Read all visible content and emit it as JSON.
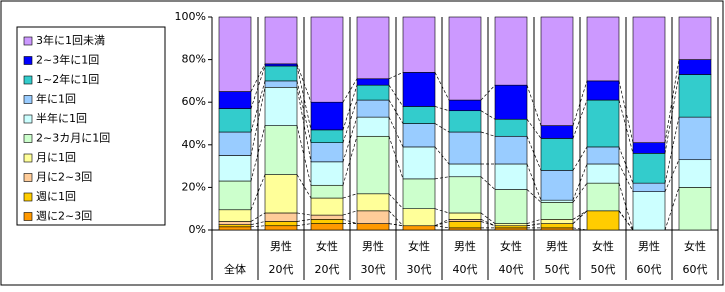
{
  "chart_data": {
    "type": "stacked_bar_percent",
    "categories": [
      [
        "全体"
      ],
      [
        "男性",
        "20代"
      ],
      [
        "女性",
        "20代"
      ],
      [
        "男性",
        "30代"
      ],
      [
        "女性",
        "30代"
      ],
      [
        "男性",
        "40代"
      ],
      [
        "女性",
        "40代"
      ],
      [
        "男性",
        "50代"
      ],
      [
        "女性",
        "50代"
      ],
      [
        "男性",
        "60代"
      ],
      [
        "女性",
        "60代"
      ]
    ],
    "series": [
      {
        "name": "週に2~3回",
        "color": "#ff9900",
        "values": [
          1.5,
          2,
          3,
          3,
          2,
          1,
          1,
          1,
          0,
          0,
          0
        ]
      },
      {
        "name": "週に1回",
        "color": "#ffcc00",
        "values": [
          1,
          2,
          2,
          0,
          0,
          3,
          1,
          2,
          9,
          0,
          0
        ]
      },
      {
        "name": "月に2~3回",
        "color": "#ffcc99",
        "values": [
          1.5,
          4,
          2,
          6,
          0,
          1,
          0,
          0,
          0,
          0,
          0
        ]
      },
      {
        "name": "月に1回",
        "color": "#ffff99",
        "values": [
          5.5,
          18,
          8,
          8,
          8,
          3,
          1,
          2,
          0,
          0,
          0
        ]
      },
      {
        "name": "2~3カ月に1回",
        "color": "#ccffcc",
        "values": [
          13.5,
          23,
          6,
          27,
          14,
          17,
          16,
          8,
          13,
          0,
          20
        ]
      },
      {
        "name": "半年に1回",
        "color": "#ccffff",
        "values": [
          12,
          18,
          11,
          9,
          15,
          6,
          12,
          1,
          9,
          18,
          13
        ]
      },
      {
        "name": "年に1回",
        "color": "#99ccff",
        "values": [
          11,
          3,
          9,
          8,
          11,
          15,
          13,
          14,
          8,
          4,
          20
        ]
      },
      {
        "name": "1~2年に1回",
        "color": "#33cccc",
        "values": [
          11,
          7,
          6,
          7,
          8,
          10,
          8,
          15,
          22,
          14,
          20
        ]
      },
      {
        "name": "2~3年に1回",
        "color": "#0000ff",
        "values": [
          8,
          1,
          13,
          3,
          16,
          5,
          16,
          6,
          9,
          5,
          7
        ]
      },
      {
        "name": "3年に1回未満",
        "color": "#cc99ff",
        "values": [
          35,
          22,
          40,
          29,
          26,
          39,
          32,
          51,
          30,
          59,
          20
        ]
      }
    ],
    "ylim": [
      0,
      100
    ],
    "yticks": [
      {
        "value": 0,
        "label": "0%"
      },
      {
        "value": 20,
        "label": "20%"
      },
      {
        "value": 40,
        "label": "40%"
      },
      {
        "value": 60,
        "label": "60%"
      },
      {
        "value": 80,
        "label": "80%"
      },
      {
        "value": 100,
        "label": "100%"
      }
    ],
    "legend": "left"
  }
}
